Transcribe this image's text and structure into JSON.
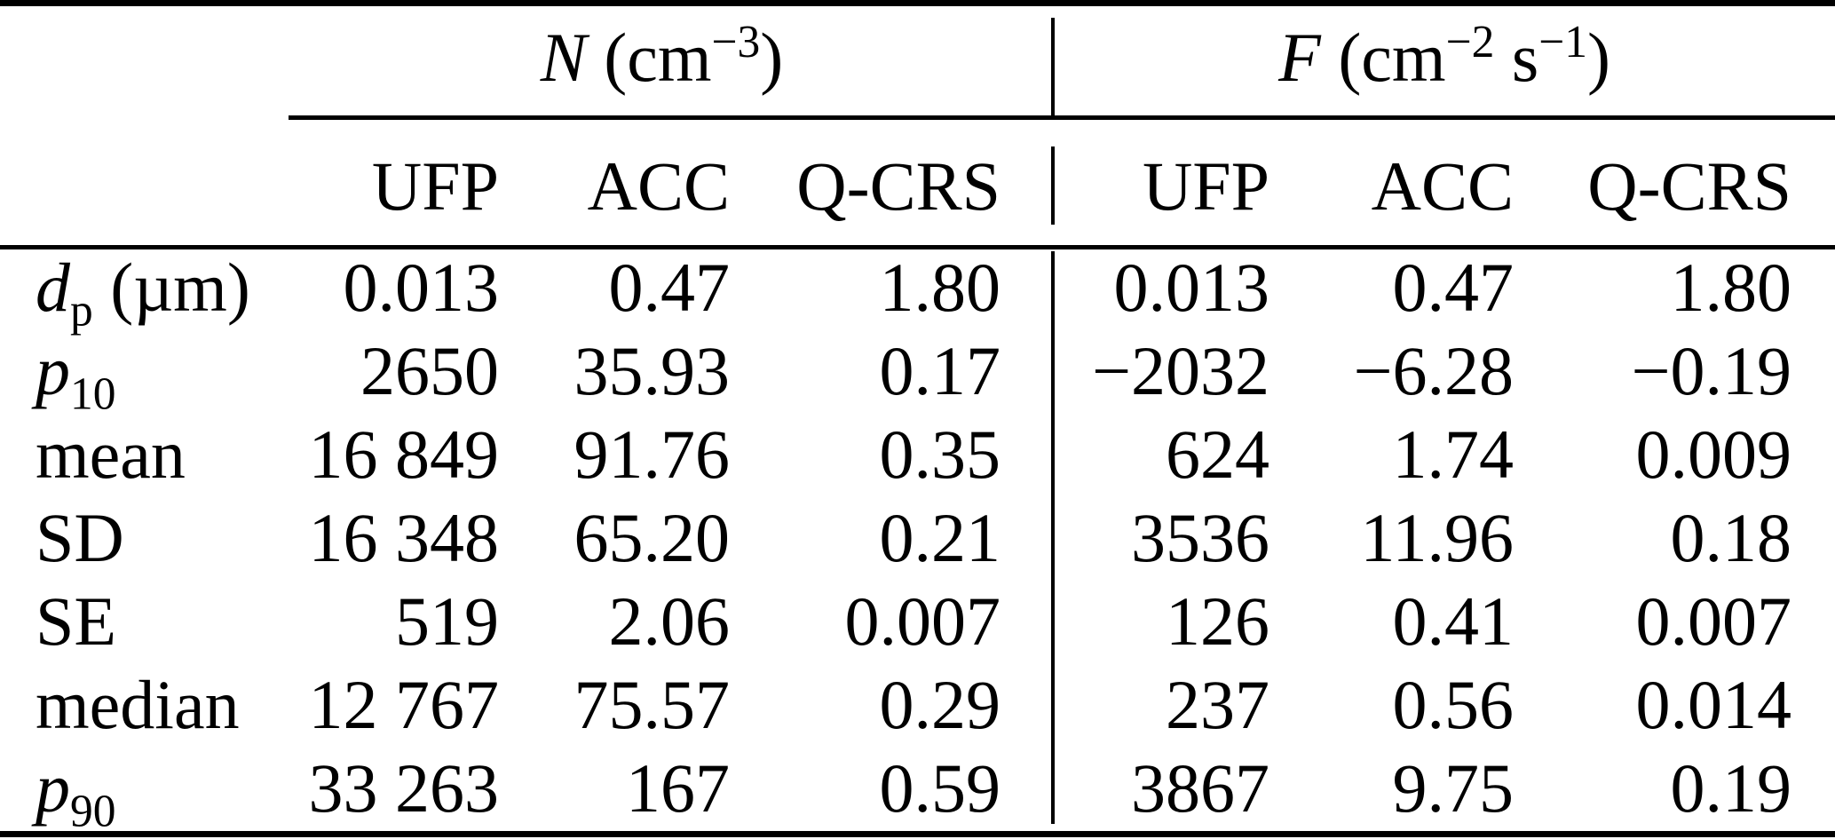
{
  "page": {
    "background_color": "#ffffff",
    "text_color": "#000000"
  },
  "table": {
    "group_headers": [
      {
        "name": "number-concentration",
        "plain_text": "N (cm−3)",
        "segments": [
          {
            "t": "N",
            "s": "i"
          },
          {
            "t": " (cm",
            "s": "n"
          },
          {
            "t": "−3",
            "s": "sup"
          },
          {
            "t": ")",
            "s": "n"
          }
        ]
      },
      {
        "name": "flux",
        "plain_text": "F (cm−2 s−1)",
        "segments": [
          {
            "t": "F",
            "s": "i"
          },
          {
            "t": " (cm",
            "s": "n"
          },
          {
            "t": "−2",
            "s": "sup"
          },
          {
            "t": " s",
            "s": "n"
          },
          {
            "t": "−1",
            "s": "sup"
          },
          {
            "t": ")",
            "s": "n"
          }
        ]
      }
    ],
    "column_headers": [
      "UFP",
      "ACC",
      "Q-CRS",
      "UFP",
      "ACC",
      "Q-CRS"
    ],
    "rows": [
      {
        "label": {
          "plain_text": "dp (µm)",
          "segments": [
            {
              "t": "d",
              "s": "i"
            },
            {
              "t": "p",
              "s": "sub"
            },
            {
              "t": " (µm)",
              "s": "n"
            }
          ]
        },
        "values": [
          "0.013",
          "0.47",
          "1.80",
          "0.013",
          "0.47",
          "1.80"
        ]
      },
      {
        "label": {
          "plain_text": "p10",
          "segments": [
            {
              "t": "p",
              "s": "i"
            },
            {
              "t": "10",
              "s": "sub"
            }
          ]
        },
        "values": [
          "2650",
          "35.93",
          "0.17",
          "−2032",
          "−6.28",
          "−0.19"
        ]
      },
      {
        "label": {
          "plain_text": "mean",
          "segments": [
            {
              "t": "mean",
              "s": "n"
            }
          ]
        },
        "values": [
          "16 849",
          "91.76",
          "0.35",
          "624",
          "1.74",
          "0.009"
        ]
      },
      {
        "label": {
          "plain_text": "SD",
          "segments": [
            {
              "t": "SD",
              "s": "n"
            }
          ]
        },
        "values": [
          "16 348",
          "65.20",
          "0.21",
          "3536",
          "11.96",
          "0.18"
        ]
      },
      {
        "label": {
          "plain_text": "SE",
          "segments": [
            {
              "t": "SE",
              "s": "n"
            }
          ]
        },
        "values": [
          "519",
          "2.06",
          "0.007",
          "126",
          "0.41",
          "0.007"
        ]
      },
      {
        "label": {
          "plain_text": "median",
          "segments": [
            {
              "t": "median",
              "s": "n"
            }
          ]
        },
        "values": [
          "12 767",
          "75.57",
          "0.29",
          "237",
          "0.56",
          "0.014"
        ]
      },
      {
        "label": {
          "plain_text": "p90",
          "segments": [
            {
              "t": "p",
              "s": "i"
            },
            {
              "t": "90",
              "s": "sub"
            }
          ]
        },
        "values": [
          "33 263",
          "167",
          "0.59",
          "3867",
          "9.75",
          "0.19"
        ]
      }
    ]
  }
}
